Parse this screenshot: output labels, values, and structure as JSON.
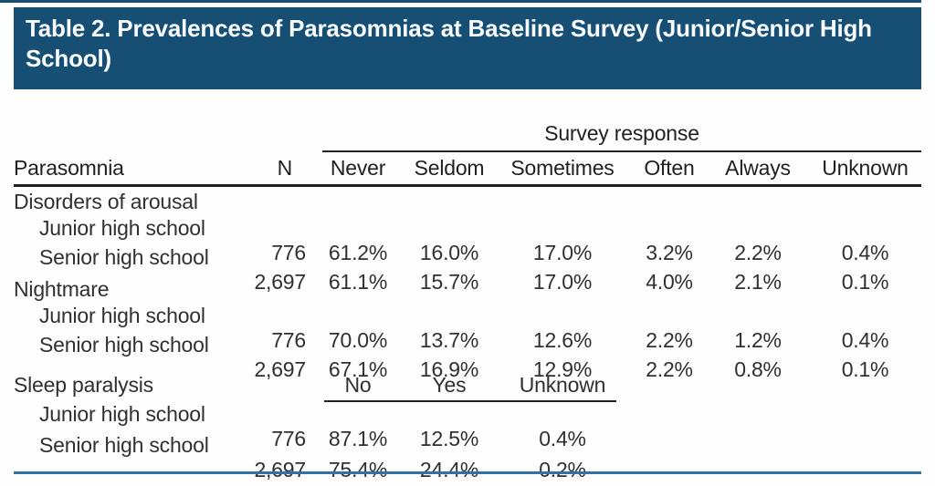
{
  "title": "Table 2. Prevalences of Parasomnias at Baseline Survey (Junior/Senior High School)",
  "colors": {
    "header_bg": "#174e74",
    "bottom_rule_blue": "#2e73a8",
    "rule_dark": "#231f20",
    "body_text": "#332f30",
    "title_text": "#f7fbfd"
  },
  "table": {
    "span_header": "Survey response",
    "columns": [
      "Parasomnia",
      "N",
      "Never",
      "Seldom",
      "Sometimes",
      "Often",
      "Always",
      "Unknown"
    ],
    "sections": [
      {
        "label": "Disorders of arousal",
        "rows": [
          {
            "label": "Junior high school",
            "n": "776",
            "values": [
              "61.2%",
              "16.0%",
              "17.0%",
              "3.2%",
              "2.2%",
              "0.4%"
            ]
          },
          {
            "label": "Senior high school",
            "n": "2,697",
            "values": [
              "61.1%",
              "15.7%",
              "17.0%",
              "4.0%",
              "2.1%",
              "0.1%"
            ]
          }
        ]
      },
      {
        "label": "Nightmare",
        "rows": [
          {
            "label": "Junior high school",
            "n": "776",
            "values": [
              "70.0%",
              "13.7%",
              "12.6%",
              "2.2%",
              "1.2%",
              "0.4%"
            ]
          },
          {
            "label": "Senior high school",
            "n": "2,697",
            "values": [
              "67.1%",
              "16.9%",
              "12.9%",
              "2.2%",
              "0.8%",
              "0.1%"
            ]
          }
        ]
      },
      {
        "label": "Sleep paralysis",
        "sub_columns": [
          "No",
          "Yes",
          "Unknown"
        ],
        "rows": [
          {
            "label": "Junior high school",
            "n": "776",
            "values": [
              "87.1%",
              "12.5%",
              "0.4%"
            ]
          },
          {
            "label": "Senior high school",
            "n": "2,697",
            "values": [
              "75.4%",
              "24.4%",
              "0.2%"
            ]
          }
        ]
      }
    ]
  }
}
